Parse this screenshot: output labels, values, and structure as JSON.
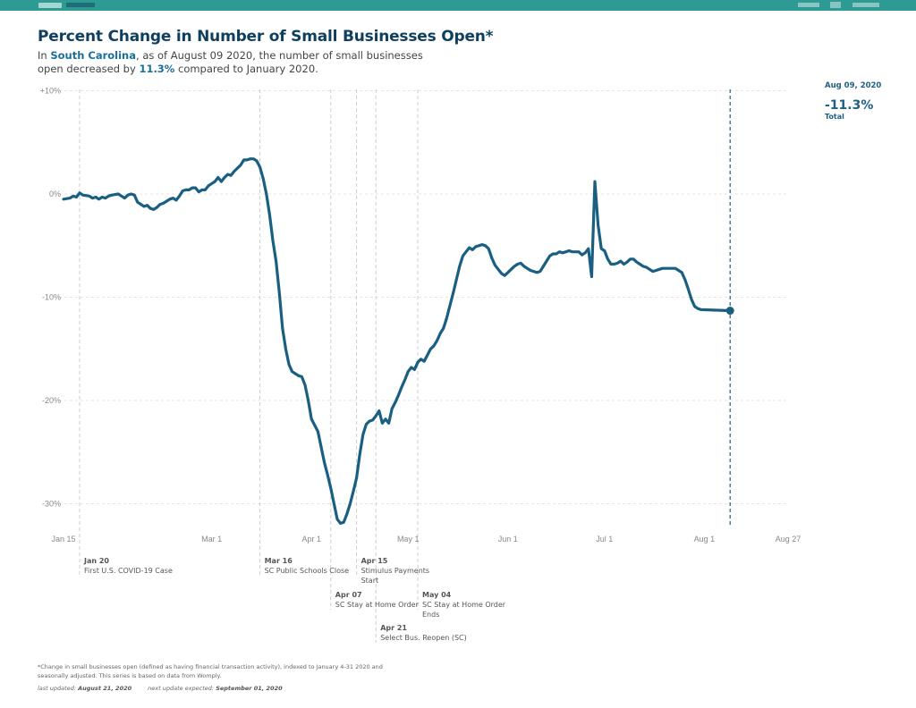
{
  "header": {
    "left_logo": "opportunity-insights-logo",
    "left_tag": "economic-tracker-tag",
    "right_logos": [
      "harvard-logo",
      "brown-logo",
      "bill-gates-foundation-logo"
    ]
  },
  "title": "Percent Change in Number of Small Businesses Open*",
  "subtitle": {
    "p1": "In ",
    "state": "South Carolina",
    "p2": ", as of August 09 2020, the number of small businesses open decreased by ",
    "pct": "11.3%",
    "p3": " compared to January 2020."
  },
  "summary": {
    "date": "Aug 09, 2020",
    "value": "-11.3%",
    "label": "Total"
  },
  "colors": {
    "line": "#1a5f82",
    "accent": "#1f5f82",
    "topbar": "#2e9a94",
    "grid": "#dddddd"
  },
  "events": [
    {
      "date": "Jan 20",
      "label": "First U.S. COVID-19 Case",
      "day": 5
    },
    {
      "date": "Mar 16",
      "label": "SC Public Schools Close",
      "day": 61
    },
    {
      "date": "Apr 07",
      "label": "SC Stay at Home Order",
      "day": 83
    },
    {
      "date": "Apr 15",
      "label": "Stimulus Payments Start",
      "day": 91
    },
    {
      "date": "Apr 21",
      "label": "Select Bus. Reopen (SC)",
      "day": 97
    },
    {
      "date": "May 04",
      "label": "SC Stay at Home Order Ends",
      "day": 110
    }
  ],
  "footnote": "*Change in small businesses open (defined as having financial transaction activity), indexed to January 4-31 2020 and seasonally adjusted. This series is based on data from Womply.",
  "updated": {
    "last_label": "last updated:",
    "last_value": "August 21, 2020",
    "next_label": "next update expected:",
    "next_value": "September 01, 2020"
  },
  "chart_data": {
    "type": "line",
    "title": "Percent Change in Number of Small Businesses Open*",
    "xlabel": "",
    "ylabel": "",
    "x_unit": "days since Jan 15, 2020",
    "xlim": [
      0,
      225
    ],
    "ylim": [
      -32.5,
      10
    ],
    "grid": true,
    "x_ticks": [
      {
        "label": "Jan 15",
        "day": 0
      },
      {
        "label": "Mar 1",
        "day": 46
      },
      {
        "label": "Apr 1",
        "day": 77
      },
      {
        "label": "May 1",
        "day": 107
      },
      {
        "label": "Jun 1",
        "day": 138
      },
      {
        "label": "Jul 1",
        "day": 168
      },
      {
        "label": "Aug 1",
        "day": 199
      },
      {
        "label": "Aug 27",
        "day": 225
      }
    ],
    "y_ticks": [
      {
        "label": "+10%",
        "value": 10
      },
      {
        "label": "0%",
        "value": 0
      },
      {
        "label": "-10%",
        "value": -10
      },
      {
        "label": "-20%",
        "value": -20
      },
      {
        "label": "-30%",
        "value": -30
      }
    ],
    "marker_line": {
      "day": 207,
      "label": "Aug 09, 2020"
    },
    "series": [
      {
        "name": "Small businesses open (South Carolina)",
        "points": [
          [
            0,
            -0.5
          ],
          [
            2,
            -0.4
          ],
          [
            3,
            -0.2
          ],
          [
            4,
            -0.3
          ],
          [
            5,
            0.1
          ],
          [
            6,
            -0.1
          ],
          [
            8,
            -0.2
          ],
          [
            9,
            -0.4
          ],
          [
            10,
            -0.3
          ],
          [
            11,
            -0.5
          ],
          [
            12,
            -0.3
          ],
          [
            13,
            -0.4
          ],
          [
            14,
            -0.2
          ],
          [
            15,
            -0.1
          ],
          [
            17,
            0.0
          ],
          [
            18,
            -0.2
          ],
          [
            19,
            -0.4
          ],
          [
            20,
            -0.1
          ],
          [
            21,
            0.0
          ],
          [
            22,
            -0.1
          ],
          [
            23,
            -0.8
          ],
          [
            24,
            -1.0
          ],
          [
            25,
            -1.2
          ],
          [
            26,
            -1.1
          ],
          [
            27,
            -1.4
          ],
          [
            28,
            -1.5
          ],
          [
            29,
            -1.3
          ],
          [
            30,
            -1.0
          ],
          [
            31,
            -0.9
          ],
          [
            32,
            -0.7
          ],
          [
            33,
            -0.5
          ],
          [
            34,
            -0.4
          ],
          [
            35,
            -0.6
          ],
          [
            36,
            -0.2
          ],
          [
            37,
            0.3
          ],
          [
            38,
            0.4
          ],
          [
            39,
            0.4
          ],
          [
            40,
            0.6
          ],
          [
            41,
            0.6
          ],
          [
            42,
            0.2
          ],
          [
            43,
            0.4
          ],
          [
            44,
            0.4
          ],
          [
            45,
            0.8
          ],
          [
            46,
            1.0
          ],
          [
            47,
            1.2
          ],
          [
            48,
            1.6
          ],
          [
            49,
            1.2
          ],
          [
            50,
            1.6
          ],
          [
            51,
            1.9
          ],
          [
            52,
            1.8
          ],
          [
            53,
            2.2
          ],
          [
            54,
            2.5
          ],
          [
            55,
            2.8
          ],
          [
            56,
            3.3
          ],
          [
            57,
            3.3
          ],
          [
            58,
            3.4
          ],
          [
            59,
            3.4
          ],
          [
            60,
            3.2
          ],
          [
            61,
            2.6
          ],
          [
            62,
            1.5
          ],
          [
            63,
            0.0
          ],
          [
            64,
            -2.0
          ],
          [
            65,
            -4.5
          ],
          [
            66,
            -6.5
          ],
          [
            67,
            -9.5
          ],
          [
            68,
            -13.0
          ],
          [
            69,
            -15.0
          ],
          [
            70,
            -16.5
          ],
          [
            71,
            -17.2
          ],
          [
            72,
            -17.4
          ],
          [
            73,
            -17.6
          ],
          [
            74,
            -17.7
          ],
          [
            75,
            -18.5
          ],
          [
            76,
            -20.0
          ],
          [
            77,
            -21.8
          ],
          [
            78,
            -22.4
          ],
          [
            79,
            -23.0
          ],
          [
            80,
            -24.5
          ],
          [
            81,
            -26.0
          ],
          [
            82,
            -27.2
          ],
          [
            83,
            -28.5
          ],
          [
            84,
            -30.0
          ],
          [
            85,
            -31.5
          ],
          [
            86,
            -31.9
          ],
          [
            87,
            -31.8
          ],
          [
            88,
            -31.0
          ],
          [
            89,
            -30.0
          ],
          [
            90,
            -28.8
          ],
          [
            91,
            -27.5
          ],
          [
            92,
            -25.2
          ],
          [
            93,
            -23.3
          ],
          [
            94,
            -22.3
          ],
          [
            95,
            -22.0
          ],
          [
            96,
            -21.9
          ],
          [
            97,
            -21.5
          ],
          [
            98,
            -21.0
          ],
          [
            99,
            -22.2
          ],
          [
            100,
            -21.8
          ],
          [
            101,
            -22.2
          ],
          [
            102,
            -20.8
          ],
          [
            103,
            -20.2
          ],
          [
            104,
            -19.5
          ],
          [
            105,
            -18.7
          ],
          [
            106,
            -18.0
          ],
          [
            107,
            -17.2
          ],
          [
            108,
            -16.8
          ],
          [
            109,
            -17.0
          ],
          [
            110,
            -16.3
          ],
          [
            111,
            -16.0
          ],
          [
            112,
            -16.2
          ],
          [
            113,
            -15.6
          ],
          [
            114,
            -15.0
          ],
          [
            115,
            -14.7
          ],
          [
            116,
            -14.2
          ],
          [
            117,
            -13.5
          ],
          [
            118,
            -13.0
          ],
          [
            119,
            -12.0
          ],
          [
            120,
            -10.8
          ],
          [
            121,
            -9.6
          ],
          [
            122,
            -8.3
          ],
          [
            123,
            -7.0
          ],
          [
            124,
            -6.0
          ],
          [
            125,
            -5.6
          ],
          [
            126,
            -5.2
          ],
          [
            127,
            -5.4
          ],
          [
            128,
            -5.1
          ],
          [
            129,
            -5.0
          ],
          [
            130,
            -4.9
          ],
          [
            131,
            -5.0
          ],
          [
            132,
            -5.3
          ],
          [
            133,
            -6.2
          ],
          [
            134,
            -6.9
          ],
          [
            135,
            -7.3
          ],
          [
            136,
            -7.7
          ],
          [
            137,
            -7.9
          ],
          [
            138,
            -7.6
          ],
          [
            139,
            -7.3
          ],
          [
            140,
            -7.0
          ],
          [
            141,
            -6.8
          ],
          [
            142,
            -6.7
          ],
          [
            143,
            -7.0
          ],
          [
            144,
            -7.2
          ],
          [
            145,
            -7.4
          ],
          [
            146,
            -7.5
          ],
          [
            147,
            -7.6
          ],
          [
            148,
            -7.5
          ],
          [
            149,
            -7.0
          ],
          [
            150,
            -6.5
          ],
          [
            151,
            -6.0
          ],
          [
            152,
            -5.8
          ],
          [
            153,
            -5.8
          ],
          [
            154,
            -5.6
          ],
          [
            155,
            -5.7
          ],
          [
            156,
            -5.6
          ],
          [
            157,
            -5.5
          ],
          [
            158,
            -5.6
          ],
          [
            159,
            -5.6
          ],
          [
            160,
            -5.6
          ],
          [
            161,
            -5.9
          ],
          [
            162,
            -5.7
          ],
          [
            163,
            -5.3
          ],
          [
            164,
            -8.0
          ],
          [
            165,
            1.2
          ],
          [
            166,
            -3.0
          ],
          [
            167,
            -5.3
          ],
          [
            168,
            -5.5
          ],
          [
            169,
            -6.3
          ],
          [
            170,
            -6.8
          ],
          [
            171,
            -6.8
          ],
          [
            172,
            -6.7
          ],
          [
            173,
            -6.5
          ],
          [
            174,
            -6.8
          ],
          [
            175,
            -6.6
          ],
          [
            176,
            -6.3
          ],
          [
            177,
            -6.3
          ],
          [
            178,
            -6.6
          ],
          [
            179,
            -6.8
          ],
          [
            180,
            -7.0
          ],
          [
            181,
            -7.1
          ],
          [
            182,
            -7.3
          ],
          [
            183,
            -7.5
          ],
          [
            184,
            -7.4
          ],
          [
            185,
            -7.3
          ],
          [
            186,
            -7.2
          ],
          [
            187,
            -7.2
          ],
          [
            188,
            -7.2
          ],
          [
            189,
            -7.2
          ],
          [
            190,
            -7.2
          ],
          [
            191,
            -7.4
          ],
          [
            192,
            -7.6
          ],
          [
            193,
            -8.3
          ],
          [
            194,
            -9.2
          ],
          [
            195,
            -10.2
          ],
          [
            196,
            -10.9
          ],
          [
            197,
            -11.1
          ],
          [
            198,
            -11.2
          ],
          [
            207,
            -11.3
          ]
        ]
      }
    ],
    "end_point": {
      "day": 207,
      "value": -11.3,
      "label": "Aug 09, 2020"
    }
  }
}
